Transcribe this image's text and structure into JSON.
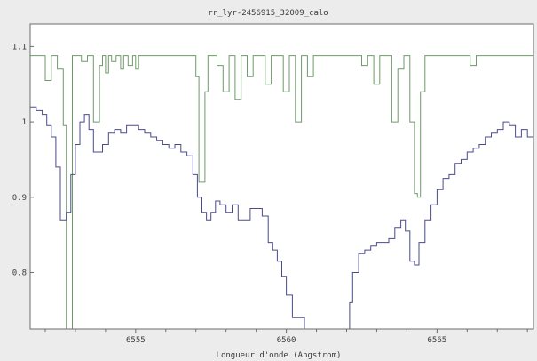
{
  "chart_data": {
    "type": "line",
    "title": "rr_lyr-2456915_32009_calo",
    "xlabel": "Longueur d'onde (Angstrom)",
    "ylabel": "",
    "xlim": [
      6551.5,
      6568.2
    ],
    "ylim": [
      0.725,
      1.13
    ],
    "x_ticks": [
      6555,
      6560,
      6565
    ],
    "x_tick_labels": [
      "6555",
      "6560",
      "6565"
    ],
    "y_ticks": [
      0.8,
      0.9,
      1.0,
      1.1
    ],
    "y_tick_labels": [
      "0.8",
      "0.9",
      "1",
      "1.1"
    ],
    "grid": false,
    "legend": "none",
    "series": [
      {
        "color": "#6f9a6a",
        "step": true,
        "x": [
          6551.5,
          6551.9,
          6552.0,
          6552.2,
          6552.4,
          6552.6,
          6552.7,
          6552.8,
          6552.9,
          6553.05,
          6553.2,
          6553.4,
          6553.6,
          6553.8,
          6553.9,
          6554.0,
          6554.1,
          6554.2,
          6554.35,
          6554.5,
          6554.6,
          6554.75,
          6554.9,
          6555.0,
          6555.1,
          6555.25,
          6555.4,
          6555.55,
          6555.7,
          6555.85,
          6556.0,
          6556.5,
          6557.0,
          6557.1,
          6557.2,
          6557.3,
          6557.4,
          6557.55,
          6557.7,
          6557.9,
          6558.1,
          6558.3,
          6558.5,
          6558.7,
          6558.9,
          6559.1,
          6559.3,
          6559.5,
          6559.7,
          6559.9,
          6560.1,
          6560.3,
          6560.5,
          6560.7,
          6560.9,
          6561.1,
          6561.3,
          6561.5,
          6561.7,
          6561.9,
          6562.1,
          6562.3,
          6562.5,
          6562.7,
          6562.9,
          6563.1,
          6563.3,
          6563.5,
          6563.7,
          6563.9,
          6564.1,
          6564.25,
          6564.35,
          6564.45,
          6564.6,
          6564.8,
          6565.0,
          6565.3,
          6565.6,
          6565.9,
          6566.1,
          6566.3,
          6566.5,
          6566.8,
          6567.2,
          6567.6,
          6568.2
        ],
        "y": [
          1.088,
          1.088,
          1.055,
          1.088,
          1.07,
          0.995,
          0.72,
          0.72,
          1.088,
          1.088,
          1.08,
          1.088,
          1.0,
          1.075,
          1.088,
          1.065,
          1.088,
          1.08,
          1.088,
          1.07,
          1.088,
          1.075,
          1.088,
          1.07,
          1.088,
          1.088,
          1.088,
          1.088,
          1.088,
          1.088,
          1.088,
          1.088,
          1.06,
          0.92,
          0.92,
          1.04,
          1.088,
          1.088,
          1.075,
          1.04,
          1.088,
          1.03,
          1.088,
          1.06,
          1.088,
          1.088,
          1.05,
          1.088,
          1.088,
          1.04,
          1.088,
          1.0,
          1.088,
          1.06,
          1.088,
          1.088,
          1.088,
          1.088,
          1.088,
          1.088,
          1.088,
          1.088,
          1.075,
          1.088,
          1.05,
          1.088,
          1.088,
          1.0,
          1.07,
          1.088,
          1.0,
          0.905,
          0.9,
          1.04,
          1.088,
          1.088,
          1.088,
          1.088,
          1.088,
          1.088,
          1.075,
          1.088,
          1.088,
          1.088,
          1.088,
          1.088,
          1.088
        ]
      },
      {
        "color": "#4a4a8c",
        "step": true,
        "x": [
          6551.5,
          6551.7,
          6551.9,
          6552.05,
          6552.2,
          6552.35,
          6552.5,
          6552.6,
          6552.7,
          6552.85,
          6553.0,
          6553.15,
          6553.3,
          6553.45,
          6553.6,
          6553.75,
          6553.9,
          6554.1,
          6554.3,
          6554.5,
          6554.7,
          6554.9,
          6555.1,
          6555.3,
          6555.5,
          6555.7,
          6555.9,
          6556.1,
          6556.3,
          6556.5,
          6556.7,
          6556.9,
          6557.05,
          6557.2,
          6557.35,
          6557.5,
          6557.65,
          6557.8,
          6558.0,
          6558.2,
          6558.4,
          6558.6,
          6558.8,
          6559.0,
          6559.2,
          6559.4,
          6559.55,
          6559.7,
          6559.85,
          6560.0,
          6560.2,
          6560.6,
          6561.0,
          6561.4,
          6561.8,
          6562.1,
          6562.2,
          6562.4,
          6562.6,
          6562.8,
          6563.0,
          6563.2,
          6563.4,
          6563.6,
          6563.8,
          6563.95,
          6564.1,
          6564.25,
          6564.4,
          6564.6,
          6564.8,
          6565.0,
          6565.2,
          6565.4,
          6565.6,
          6565.8,
          6566.0,
          6566.2,
          6566.4,
          6566.6,
          6566.8,
          6567.0,
          6567.2,
          6567.4,
          6567.6,
          6567.8,
          6568.0,
          6568.2
        ],
        "y": [
          1.02,
          1.015,
          1.01,
          0.995,
          0.98,
          0.94,
          0.87,
          0.87,
          0.88,
          0.93,
          0.97,
          1.0,
          1.01,
          0.99,
          0.96,
          0.96,
          0.97,
          0.985,
          0.99,
          0.985,
          0.995,
          0.995,
          0.99,
          0.985,
          0.98,
          0.975,
          0.97,
          0.965,
          0.97,
          0.96,
          0.955,
          0.93,
          0.9,
          0.88,
          0.87,
          0.88,
          0.895,
          0.89,
          0.88,
          0.89,
          0.87,
          0.87,
          0.885,
          0.885,
          0.875,
          0.84,
          0.83,
          0.815,
          0.795,
          0.77,
          0.74,
          0.72,
          0.72,
          0.72,
          0.72,
          0.76,
          0.8,
          0.825,
          0.83,
          0.835,
          0.84,
          0.84,
          0.845,
          0.86,
          0.87,
          0.855,
          0.815,
          0.81,
          0.84,
          0.87,
          0.89,
          0.91,
          0.925,
          0.93,
          0.945,
          0.95,
          0.96,
          0.965,
          0.97,
          0.98,
          0.985,
          0.99,
          1.0,
          0.995,
          0.98,
          0.99,
          0.98,
          0.99
        ]
      }
    ]
  }
}
